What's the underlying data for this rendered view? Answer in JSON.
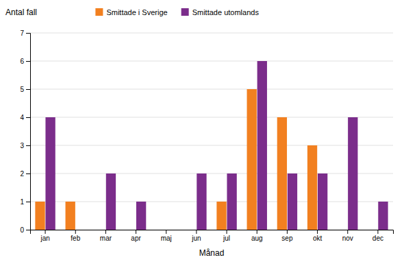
{
  "chart_data": {
    "type": "bar",
    "categories": [
      "jan",
      "feb",
      "mar",
      "apr",
      "maj",
      "jun",
      "jul",
      "aug",
      "sep",
      "okt",
      "nov",
      "dec"
    ],
    "series": [
      {
        "name": "Smittade i Sverige",
        "color": "#F28020",
        "values": [
          1,
          1,
          0,
          0,
          0,
          0,
          1,
          5,
          4,
          3,
          0,
          0
        ]
      },
      {
        "name": "Smittade utomlands",
        "color": "#7B2D8B",
        "values": [
          4,
          0,
          2,
          1,
          0,
          2,
          2,
          6,
          2,
          2,
          4,
          1
        ]
      }
    ],
    "xlabel": "Månad",
    "ylabel": "Antal fall",
    "ylim": [
      0,
      7
    ],
    "yticks": [
      0,
      1,
      2,
      3,
      4,
      5,
      6,
      7
    ],
    "grid": true,
    "legend": "top"
  }
}
